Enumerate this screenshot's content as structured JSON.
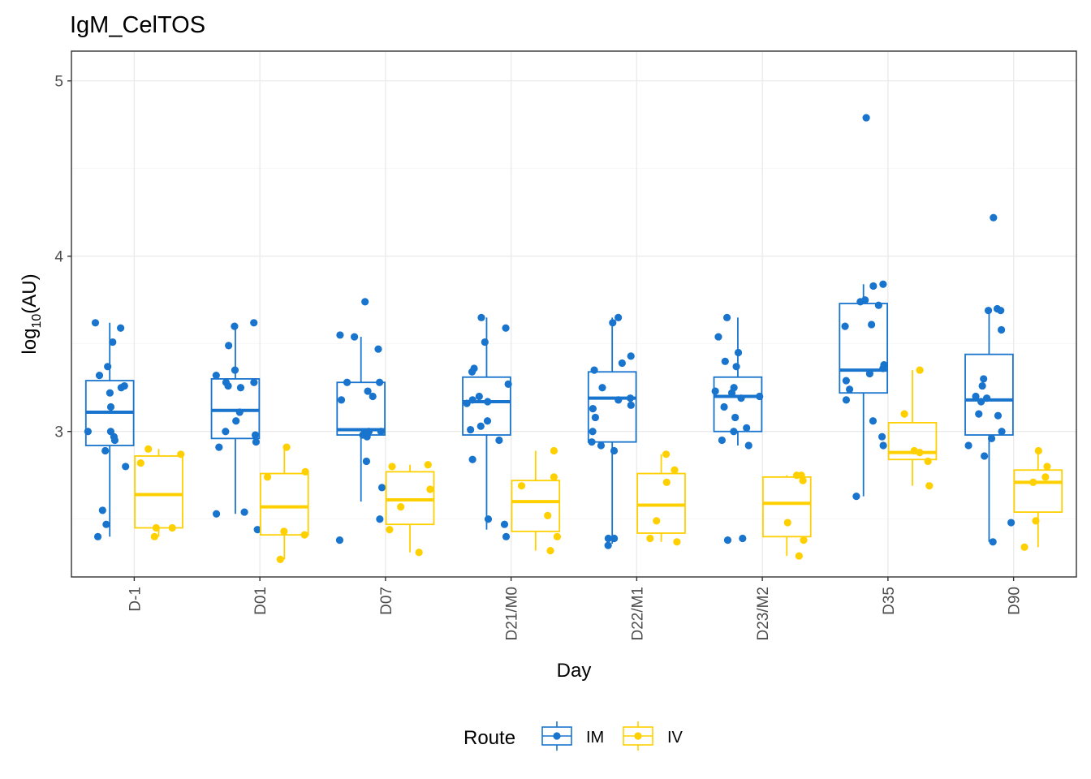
{
  "chart_data": {
    "type": "boxplot",
    "title": "IgM_CelTOS",
    "xlabel": "Day",
    "ylabel": {
      "base": "log",
      "sub": "10",
      "rest": "(AU)"
    },
    "ylim": [
      2.17,
      5.17
    ],
    "yticks": [
      3,
      4,
      5
    ],
    "categories": [
      "D-1",
      "D01",
      "D07",
      "D21/M0",
      "D22/M1",
      "D23/M2",
      "D35",
      "D90"
    ],
    "legend": {
      "title": "Route",
      "position": "bottom"
    },
    "grid": true,
    "series": [
      {
        "name": "IM",
        "color": "#1874CD",
        "boxes": [
          {
            "q1": 2.92,
            "median": 3.11,
            "q3": 3.29,
            "whisker_low": 2.4,
            "whisker_high": 3.62
          },
          {
            "q1": 2.96,
            "median": 3.12,
            "q3": 3.3,
            "whisker_low": 2.53,
            "whisker_high": 3.62
          },
          {
            "q1": 2.98,
            "median": 3.01,
            "q3": 3.28,
            "whisker_low": 2.6,
            "whisker_high": 3.54
          },
          {
            "q1": 2.98,
            "median": 3.17,
            "q3": 3.31,
            "whisker_low": 2.44,
            "whisker_high": 3.65
          },
          {
            "q1": 2.94,
            "median": 3.19,
            "q3": 3.34,
            "whisker_low": 2.36,
            "whisker_high": 3.65
          },
          {
            "q1": 3.0,
            "median": 3.2,
            "q3": 3.31,
            "whisker_low": 2.92,
            "whisker_high": 3.65
          },
          {
            "q1": 3.22,
            "median": 3.35,
            "q3": 3.73,
            "whisker_low": 2.63,
            "whisker_high": 3.84
          },
          {
            "q1": 2.98,
            "median": 3.18,
            "q3": 3.44,
            "whisker_low": 2.37,
            "whisker_high": 3.71
          }
        ],
        "points": [
          [
            3.62,
            3.59,
            3.51,
            3.37,
            3.32,
            3.26,
            3.25,
            3.22,
            3.14,
            3.0,
            3.0,
            2.97,
            2.95,
            2.89,
            2.8,
            2.55,
            2.47,
            2.4
          ],
          [
            3.62,
            3.6,
            3.49,
            3.35,
            3.32,
            3.28,
            3.28,
            3.26,
            3.25,
            3.11,
            3.06,
            3.0,
            2.98,
            2.94,
            2.91,
            2.54,
            2.53,
            2.44
          ],
          [
            3.74,
            3.55,
            3.54,
            3.47,
            3.28,
            3.28,
            3.23,
            3.2,
            3.18,
            3.0,
            3.0,
            2.99,
            2.98,
            2.97,
            2.83,
            2.68,
            2.5,
            2.38
          ],
          [
            3.65,
            3.59,
            3.51,
            3.36,
            3.34,
            3.27,
            3.2,
            3.18,
            3.17,
            3.16,
            3.06,
            3.03,
            3.01,
            2.95,
            2.84,
            2.5,
            2.47,
            2.4
          ],
          [
            3.65,
            3.62,
            3.43,
            3.39,
            3.35,
            3.25,
            3.19,
            3.18,
            3.15,
            3.13,
            3.08,
            3.0,
            2.94,
            2.92,
            2.89,
            2.39,
            2.39,
            2.35
          ],
          [
            3.65,
            3.54,
            3.45,
            3.4,
            3.37,
            3.25,
            3.23,
            3.22,
            3.2,
            3.19,
            3.14,
            3.08,
            3.02,
            3.0,
            2.95,
            2.92,
            2.39,
            2.38
          ],
          [
            4.79,
            3.84,
            3.83,
            3.75,
            3.74,
            3.72,
            3.61,
            3.6,
            3.38,
            3.36,
            3.33,
            3.29,
            3.24,
            3.18,
            3.06,
            2.97,
            2.92,
            2.63
          ],
          [
            4.22,
            3.7,
            3.69,
            3.69,
            3.58,
            3.3,
            3.26,
            3.2,
            3.19,
            3.17,
            3.1,
            3.09,
            3.0,
            2.96,
            2.92,
            2.86,
            2.48,
            2.37
          ]
        ]
      },
      {
        "name": "IV",
        "color": "#FFD000",
        "boxes": [
          {
            "q1": 2.45,
            "median": 2.64,
            "q3": 2.86,
            "whisker_low": 2.4,
            "whisker_high": 2.9
          },
          {
            "q1": 2.41,
            "median": 2.57,
            "q3": 2.76,
            "whisker_low": 2.27,
            "whisker_high": 2.91
          },
          {
            "q1": 2.47,
            "median": 2.61,
            "q3": 2.77,
            "whisker_low": 2.31,
            "whisker_high": 2.81
          },
          {
            "q1": 2.43,
            "median": 2.6,
            "q3": 2.72,
            "whisker_low": 2.32,
            "whisker_high": 2.89
          },
          {
            "q1": 2.42,
            "median": 2.58,
            "q3": 2.76,
            "whisker_low": 2.37,
            "whisker_high": 2.87
          },
          {
            "q1": 2.4,
            "median": 2.59,
            "q3": 2.74,
            "whisker_low": 2.29,
            "whisker_high": 2.75
          },
          {
            "q1": 2.84,
            "median": 2.88,
            "q3": 3.05,
            "whisker_low": 2.69,
            "whisker_high": 3.35
          },
          {
            "q1": 2.54,
            "median": 2.71,
            "q3": 2.78,
            "whisker_low": 2.34,
            "whisker_high": 2.89
          }
        ],
        "points": [
          [
            2.9,
            2.87,
            2.82,
            2.45,
            2.45,
            2.4
          ],
          [
            2.91,
            2.77,
            2.74,
            2.43,
            2.41,
            2.27
          ],
          [
            2.81,
            2.8,
            2.67,
            2.57,
            2.44,
            2.31
          ],
          [
            2.89,
            2.74,
            2.69,
            2.52,
            2.4,
            2.32
          ],
          [
            2.87,
            2.78,
            2.71,
            2.49,
            2.39,
            2.37
          ],
          [
            2.75,
            2.75,
            2.72,
            2.48,
            2.38,
            2.29
          ],
          [
            3.35,
            3.1,
            2.89,
            2.88,
            2.83,
            2.69
          ],
          [
            2.89,
            2.8,
            2.74,
            2.71,
            2.49,
            2.34
          ]
        ]
      }
    ]
  }
}
